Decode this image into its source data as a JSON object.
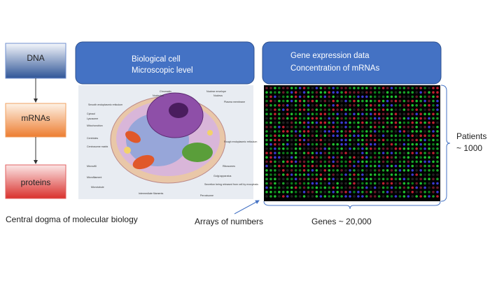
{
  "dogma": {
    "steps": [
      "DNA",
      "mRNAs",
      "proteins"
    ],
    "caption": "Central dogma of molecular biology"
  },
  "cell_panel": {
    "header": [
      "Biological cell",
      "Microscopic level"
    ],
    "labels": [
      "Chromatin",
      "Nucleolus",
      "Nuclear envelope",
      "Nucleus",
      "Plasma membrane",
      "Smooth endoplasmic reticulum",
      "Cytosol",
      "Lysosome",
      "Mitochondrion",
      "Centrioles",
      "Centrosome matrix",
      "Microvilli",
      "Microfilament",
      "Microtubule",
      "Intermediate filaments",
      "Peroxisome",
      "Secretion being released from cell by exocytosis",
      "Golgi apparatus",
      "Ribosomes",
      "Rough endoplasmic reticulum"
    ]
  },
  "data_panel": {
    "header": [
      "Gene expression data",
      "Concentration of mRNAs"
    ],
    "rows_label": [
      "Patients",
      "~ 1000"
    ],
    "cols_label": "Genes ~ 20,000"
  },
  "arrays_label": "Arrays of numbers"
}
